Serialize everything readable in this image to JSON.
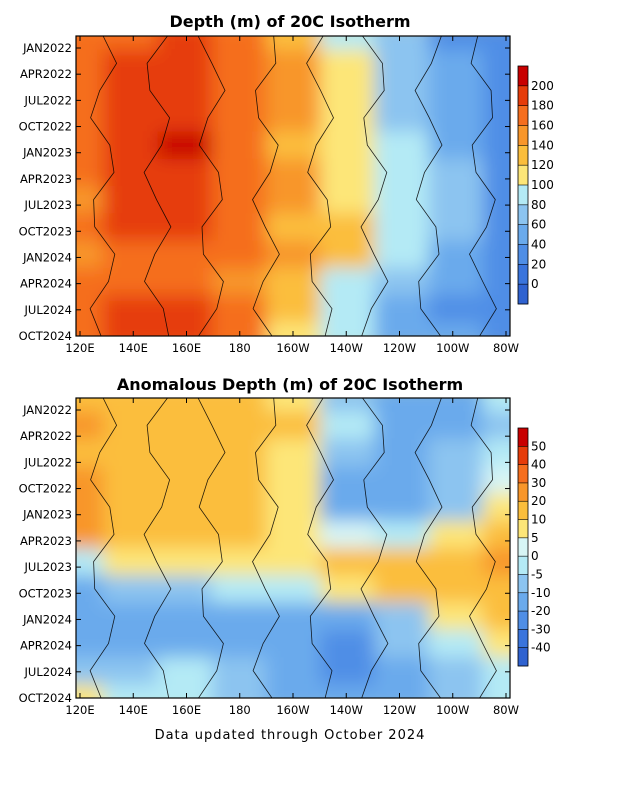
{
  "chart_data": [
    {
      "type": "heatmap",
      "title": "Depth (m) of 20C Isotherm",
      "x_ticks": [
        "120E",
        "140E",
        "160E",
        "180",
        "160W",
        "140W",
        "120W",
        "100W",
        "80W"
      ],
      "y_ticks": [
        "JAN2022",
        "APR2022",
        "JUL2022",
        "OCT2022",
        "JAN2023",
        "APR2023",
        "JUL2023",
        "OCT2023",
        "JAN2024",
        "APR2024",
        "JUL2024",
        "OCT2024"
      ],
      "colorbar": {
        "labels": [
          "200",
          "180",
          "160",
          "140",
          "120",
          "100",
          "80",
          "60",
          "40",
          "20",
          "0"
        ],
        "colors": [
          "#c80000",
          "#e63c0a",
          "#f56e1e",
          "#f8962a",
          "#fbbe3c",
          "#fde678",
          "#b4eaf5",
          "#8cc4f0",
          "#6aaaec",
          "#4f8ee6",
          "#3a74dc",
          "#2f62d0"
        ]
      },
      "z_range": [
        0,
        220
      ],
      "columns_x": [
        "120E",
        "140E",
        "160E",
        "180",
        "160W",
        "140W",
        "120W",
        "100W",
        "80W"
      ],
      "rows_time": [
        "JAN2022",
        "APR2022",
        "JUL2022",
        "OCT2022",
        "JAN2023",
        "APR2023",
        "JUL2023",
        "OCT2023",
        "JAN2024",
        "APR2024",
        "JUL2024",
        "OCT2024"
      ],
      "values": [
        [
          160,
          178,
          180,
          165,
          135,
          95,
          60,
          35,
          25
        ],
        [
          160,
          185,
          182,
          168,
          140,
          100,
          65,
          40,
          30
        ],
        [
          160,
          185,
          183,
          170,
          140,
          105,
          60,
          45,
          25
        ],
        [
          165,
          190,
          190,
          172,
          140,
          110,
          65,
          45,
          20
        ],
        [
          165,
          192,
          205,
          175,
          135,
          105,
          80,
          50,
          25
        ],
        [
          168,
          188,
          190,
          170,
          145,
          110,
          85,
          60,
          25
        ],
        [
          158,
          182,
          182,
          165,
          140,
          115,
          90,
          65,
          35
        ],
        [
          160,
          180,
          180,
          162,
          138,
          120,
          90,
          60,
          30
        ],
        [
          155,
          175,
          178,
          160,
          140,
          120,
          80,
          50,
          25
        ],
        [
          170,
          178,
          178,
          155,
          130,
          90,
          60,
          40,
          20
        ],
        [
          170,
          182,
          182,
          160,
          120,
          85,
          55,
          35,
          25
        ],
        [
          165,
          180,
          180,
          160,
          115,
          80,
          55,
          40,
          25
        ]
      ]
    },
    {
      "type": "heatmap",
      "title": "Anomalous Depth (m) of 20C Isotherm",
      "x_ticks": [
        "120E",
        "140E",
        "160E",
        "180",
        "160W",
        "140W",
        "120W",
        "100W",
        "80W"
      ],
      "y_ticks": [
        "JAN2022",
        "APR2022",
        "JUL2022",
        "OCT2022",
        "JAN2023",
        "APR2023",
        "JUL2023",
        "OCT2023",
        "JAN2024",
        "APR2024",
        "JUL2024",
        "OCT2024"
      ],
      "colorbar": {
        "labels": [
          "50",
          "40",
          "30",
          "20",
          "10",
          "5",
          "0",
          "-5",
          "-10",
          "-20",
          "-30",
          "-40"
        ],
        "colors": [
          "#c80000",
          "#e63c0a",
          "#f56e1e",
          "#f8962a",
          "#fbbe3c",
          "#fde678",
          "#d7f5f5",
          "#b4eaf5",
          "#8cc4f0",
          "#6aaaec",
          "#4f8ee6",
          "#3a74dc",
          "#2f62d0"
        ]
      },
      "z_range": [
        -50,
        60
      ],
      "columns_x": [
        "120E",
        "140E",
        "160E",
        "180",
        "160W",
        "140W",
        "120W",
        "100W",
        "80W"
      ],
      "rows_time": [
        "JAN2022",
        "APR2022",
        "JUL2022",
        "OCT2022",
        "JAN2023",
        "APR2023",
        "JUL2023",
        "OCT2023",
        "JAN2024",
        "APR2024",
        "JUL2024",
        "OCT2024"
      ],
      "values": [
        [
          15,
          12,
          12,
          10,
          8,
          -10,
          -20,
          -15,
          -5
        ],
        [
          20,
          12,
          12,
          12,
          10,
          -5,
          -15,
          -15,
          -10
        ],
        [
          18,
          10,
          12,
          10,
          5,
          -10,
          -20,
          -10,
          -5
        ],
        [
          25,
          15,
          15,
          12,
          8,
          -15,
          -20,
          -10,
          0
        ],
        [
          25,
          15,
          12,
          10,
          8,
          -15,
          -15,
          -10,
          5
        ],
        [
          20,
          12,
          12,
          10,
          8,
          2,
          -5,
          5,
          10
        ],
        [
          -5,
          5,
          8,
          5,
          8,
          10,
          12,
          15,
          20
        ],
        [
          -15,
          -10,
          -8,
          -5,
          -2,
          5,
          12,
          12,
          15
        ],
        [
          -20,
          -20,
          -15,
          -15,
          -15,
          -15,
          -10,
          5,
          10
        ],
        [
          -15,
          -20,
          -20,
          -15,
          -20,
          -25,
          -10,
          -5,
          5
        ],
        [
          -10,
          -10,
          -5,
          -10,
          -20,
          -25,
          -15,
          -10,
          -5
        ],
        [
          5,
          -5,
          -5,
          -10,
          -15,
          -20,
          -15,
          -10,
          -5
        ]
      ]
    }
  ],
  "footer": "Data updated through October 2024"
}
